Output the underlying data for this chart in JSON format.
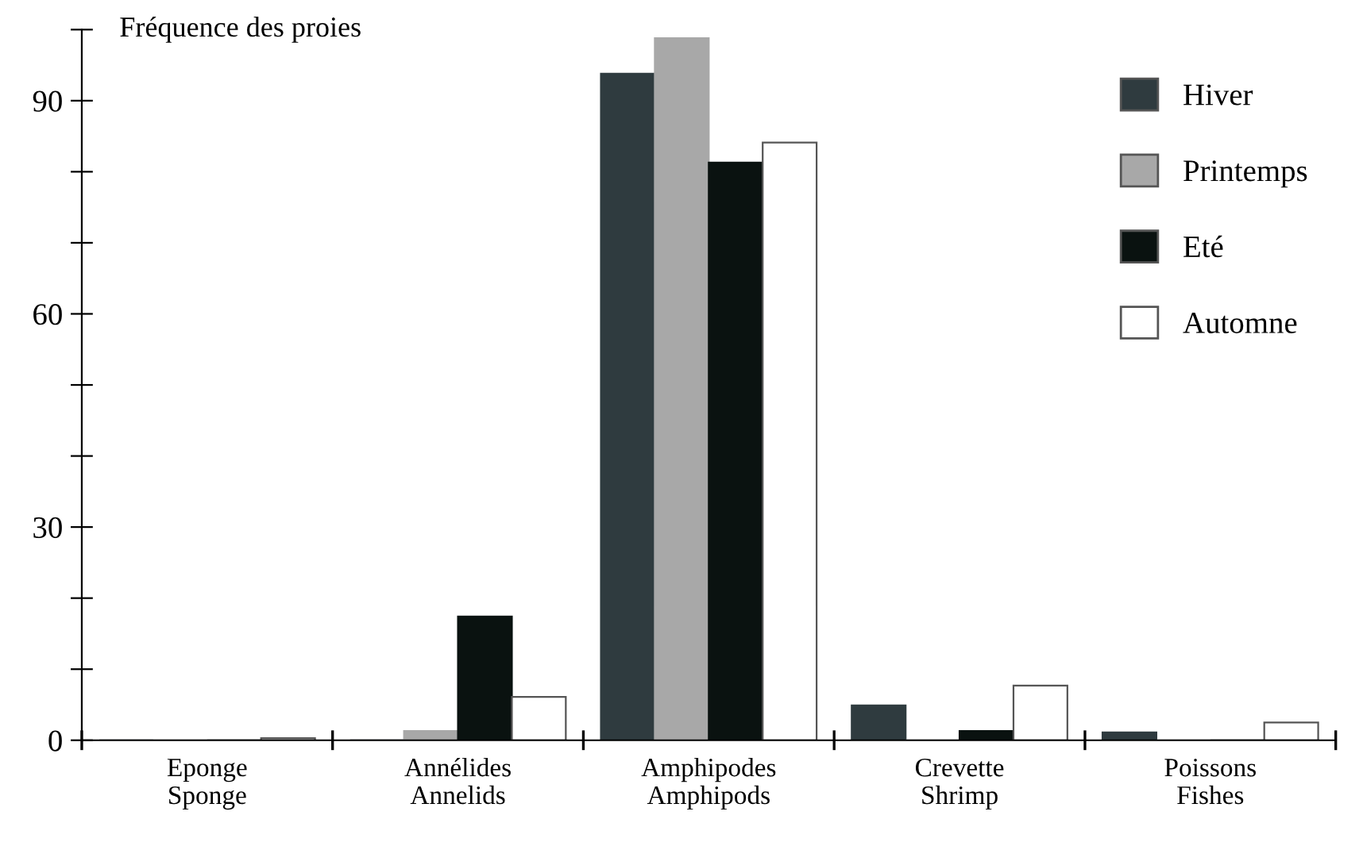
{
  "chart_data": {
    "type": "bar",
    "ylabel": "Fréquence des proies",
    "categories": [
      "Eponge\nSponge",
      "Annélides\nAnnelids",
      "Amphipodes\nAmphipods",
      "Crevette\nShrimp",
      "Poissons\nFishes"
    ],
    "series": [
      {
        "name": "Hiver",
        "color": "#2f3b3f",
        "values": [
          0,
          0,
          93.8,
          4.9,
          1.1
        ]
      },
      {
        "name": "Printemps",
        "color": "#a8a8a8",
        "values": [
          0,
          1.3,
          98.8,
          0,
          0
        ]
      },
      {
        "name": "Eté",
        "color": "#0a1210",
        "values": [
          0,
          17.4,
          81.3,
          1.3,
          0
        ]
      },
      {
        "name": "Automne",
        "color": "#ffffff",
        "values": [
          0.3,
          6.1,
          84.1,
          7.7,
          2.5
        ]
      }
    ],
    "ylim": [
      0,
      100
    ],
    "yticks": [
      0,
      {
        "value": 10,
        "label": null
      },
      {
        "value": 20,
        "label": null
      },
      30,
      {
        "value": 40,
        "label": null
      },
      {
        "value": 50,
        "label": null
      },
      60,
      {
        "value": 70,
        "label": null
      },
      {
        "value": 80,
        "label": null
      },
      90,
      {
        "value": 100,
        "label": null
      }
    ],
    "grid": false,
    "legend": "top right"
  }
}
